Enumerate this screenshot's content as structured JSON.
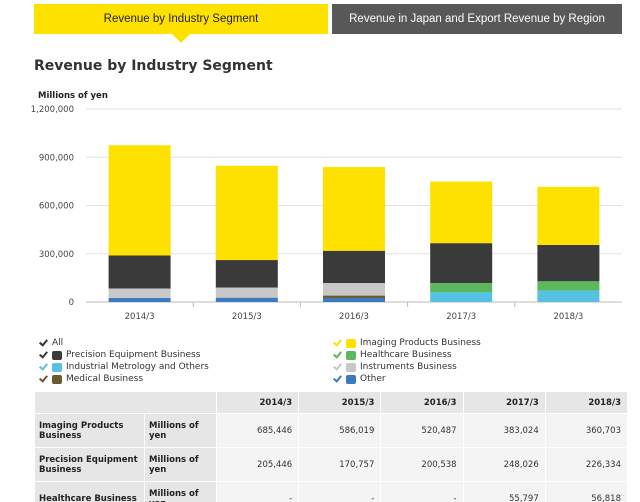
{
  "tabs": [
    {
      "label": "Revenue by Industry Segment",
      "active": true
    },
    {
      "label": "Revenue in Japan and Export Revenue by Region",
      "active": false
    }
  ],
  "section_title": "Revenue by Industry Segment",
  "chart_data": {
    "type": "bar",
    "stacked": true,
    "title": "",
    "xlabel": "",
    "ylabel": "Millions of yen",
    "ylim": [
      0,
      1200000
    ],
    "yticks": [
      "0",
      "300,000",
      "600,000",
      "900,000",
      "1,200,000"
    ],
    "ytick_values": [
      0,
      300000,
      600000,
      900000,
      1200000
    ],
    "categories": [
      "2014/3",
      "2015/3",
      "2016/3",
      "2017/3",
      "2018/3"
    ],
    "series": [
      {
        "name": "Other",
        "color": "#3a7bbf",
        "values": [
          26000,
          27000,
          25000,
          0,
          0
        ]
      },
      {
        "name": "Medical Business",
        "color": "#6b5a2e",
        "values": [
          0,
          0,
          15000,
          0,
          0
        ]
      },
      {
        "name": "Industrial Metrology and Others",
        "color": "#56c1e0",
        "values": [
          0,
          0,
          0,
          62000,
          72000
        ]
      },
      {
        "name": "Instruments Business",
        "color": "#c8c8c8",
        "values": [
          58000,
          63000,
          78000,
          0,
          0
        ]
      },
      {
        "name": "Healthcare Business",
        "color": "#5cb85c",
        "values": [
          0,
          0,
          0,
          55797,
          56818
        ]
      },
      {
        "name": "Precision Equipment Business",
        "color": "#3a3a3a",
        "values": [
          205446,
          170757,
          200538,
          248026,
          226334
        ]
      },
      {
        "name": "Imaging Products Business",
        "color": "#ffe100",
        "values": [
          685446,
          586019,
          520487,
          383024,
          360703
        ]
      }
    ],
    "grid": true,
    "legend_position": "bottom"
  },
  "legend": {
    "all_label": "All",
    "left": [
      {
        "label": "Precision Equipment Business",
        "color": "#3a3a3a",
        "check_color": "#3a3a3a"
      },
      {
        "label": "Industrial Metrology and Others",
        "color": "#56c1e0",
        "check_color": "#56c1e0"
      },
      {
        "label": "Medical Business",
        "color": "#6b5a2e",
        "check_color": "#6b5a2e"
      }
    ],
    "right": [
      {
        "label": "Imaging Products Business",
        "color": "#ffe100",
        "check_color": "#ffe100"
      },
      {
        "label": "Healthcare Business",
        "color": "#5cb85c",
        "check_color": "#5cb85c"
      },
      {
        "label": "Instruments Business",
        "color": "#c8c8c8",
        "check_color": "#c8c8c8"
      },
      {
        "label": "Other",
        "color": "#3a7bbf",
        "check_color": "#3a7bbf"
      }
    ]
  },
  "table": {
    "headers": [
      "2014/3",
      "2015/3",
      "2016/3",
      "2017/3",
      "2018/3"
    ],
    "rows": [
      {
        "name": "Imaging Products Business",
        "unit": "Millions of yen",
        "values": [
          "685,446",
          "586,019",
          "520,487",
          "383,024",
          "360,703"
        ]
      },
      {
        "name": "Precision Equipment Business",
        "unit": "Millions of yen",
        "values": [
          "205,446",
          "170,757",
          "200,538",
          "248,026",
          "226,334"
        ]
      },
      {
        "name": "Healthcare Business",
        "unit": "Millions of yen",
        "values": [
          "-",
          "-",
          "-",
          "55,797",
          "56,818"
        ]
      }
    ]
  }
}
